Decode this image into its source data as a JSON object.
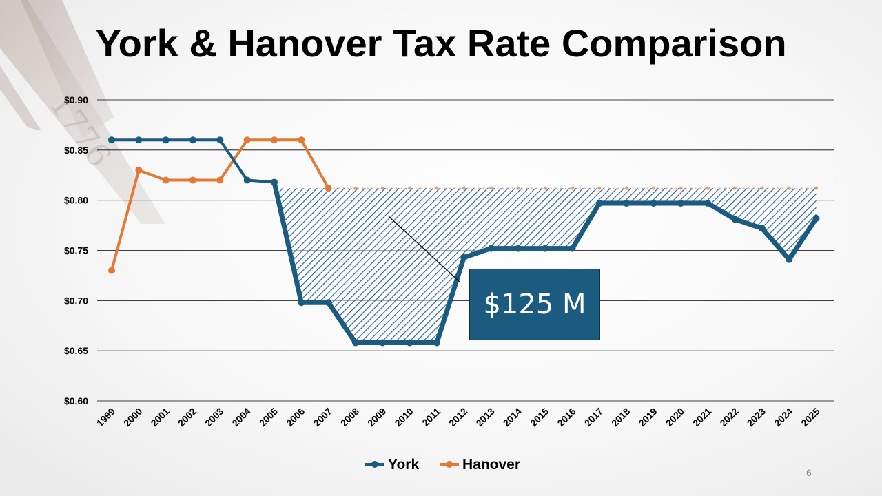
{
  "slide": {
    "title": "York & Hanover Tax Rate Comparison",
    "callout_text": "$125 M",
    "page_number": "6"
  },
  "colors": {
    "york": "#1b5b80",
    "hanover": "#e27a35",
    "hatch": "#2d64a0",
    "callout_bg": "#1b5b80"
  },
  "chart_data": {
    "type": "line",
    "title": "York & Hanover Tax Rate Comparison",
    "xlabel": "",
    "ylabel": "",
    "categories": [
      "1999",
      "2000",
      "2001",
      "2002",
      "2003",
      "2004",
      "2005",
      "2006",
      "2007",
      "2008",
      "2009",
      "2010",
      "2011",
      "2012",
      "2013",
      "2014",
      "2015",
      "2016",
      "2017",
      "2018",
      "2019",
      "2020",
      "2021",
      "2022",
      "2023",
      "2024",
      "2025"
    ],
    "y_ticks": [
      "$0.90",
      "$0.85",
      "$0.80",
      "$0.75",
      "$0.70",
      "$0.65",
      "$0.60"
    ],
    "ylim": [
      0.6,
      0.9
    ],
    "grid": true,
    "legend_position": "bottom",
    "series": [
      {
        "name": "York",
        "values": [
          0.86,
          0.86,
          0.86,
          0.86,
          0.86,
          0.82,
          0.818,
          0.698,
          0.698,
          0.658,
          0.658,
          0.658,
          0.658,
          0.743,
          0.752,
          0.752,
          0.752,
          0.752,
          0.797,
          0.797,
          0.797,
          0.797,
          0.797,
          0.781,
          0.772,
          0.741,
          0.782
        ]
      },
      {
        "name": "Hanover",
        "values": [
          0.73,
          0.83,
          0.82,
          0.82,
          0.82,
          0.86,
          0.86,
          0.86,
          0.812,
          0.812,
          0.812,
          0.812,
          0.812,
          0.812,
          0.812,
          0.812,
          0.812,
          0.812,
          0.812,
          0.812,
          0.812,
          0.812,
          0.812,
          0.812,
          0.812,
          0.812,
          0.812
        ]
      }
    ],
    "shaded_gap": {
      "from_year": "2005",
      "to_year": "2025",
      "annotation": "$125 M"
    }
  }
}
